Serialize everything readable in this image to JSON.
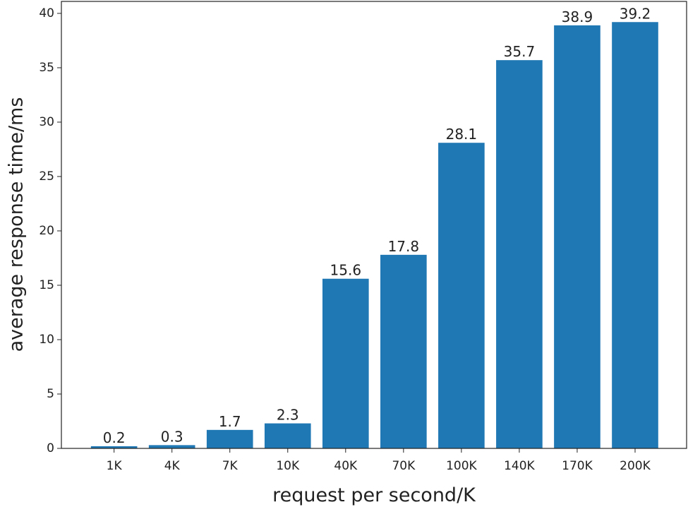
{
  "chart_data": {
    "type": "bar",
    "categories": [
      "1K",
      "4K",
      "7K",
      "10K",
      "40K",
      "70K",
      "100K",
      "140K",
      "170K",
      "200K"
    ],
    "values": [
      0.2,
      0.3,
      1.7,
      2.3,
      15.6,
      17.8,
      28.1,
      35.7,
      38.9,
      39.2
    ],
    "color": "#1f77b4",
    "x_label": "request per second/K",
    "y_label": "average response time/ms",
    "ylim": [
      0,
      41.1
    ],
    "yticks": [
      0,
      5,
      10,
      15,
      20,
      25,
      30,
      35,
      40
    ],
    "grid": false
  }
}
